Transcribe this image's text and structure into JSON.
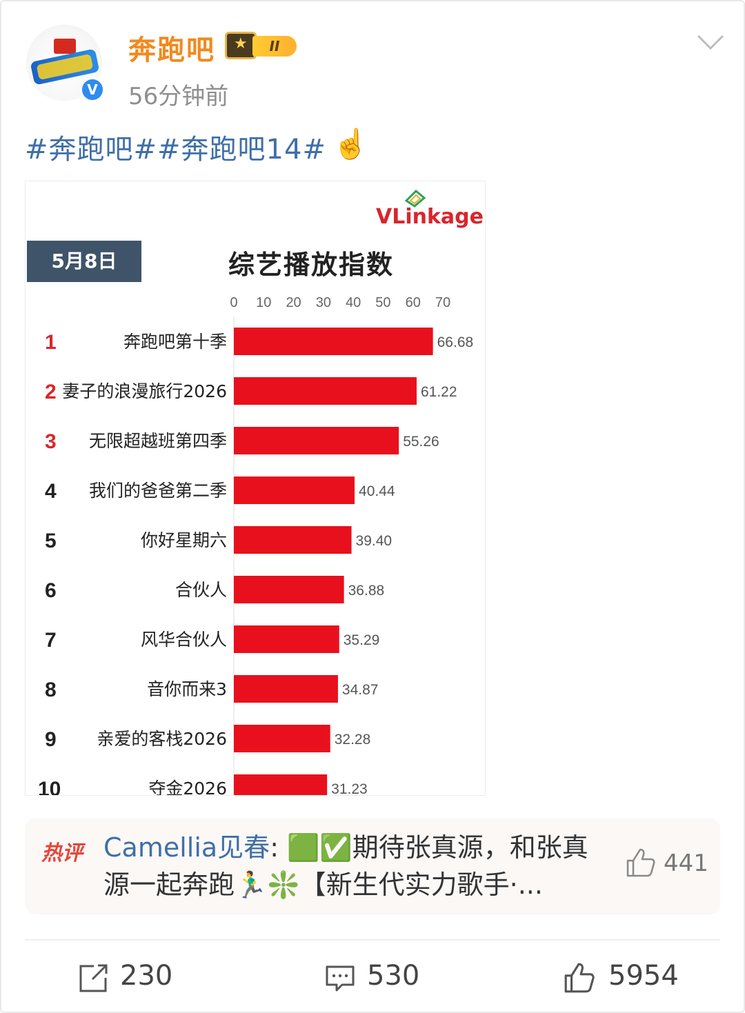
{
  "post": {
    "username": "奔跑吧",
    "vip_level": "II",
    "time": "56分钟前",
    "topics": "#奔跑吧##奔跑吧14#",
    "emoji": "☝️"
  },
  "icons": {
    "avatar": "show-logo-icon",
    "verified": "verified-icon",
    "vip": "crown-badge-icon",
    "menu": "chevron-down-icon",
    "hot_like": "thumbs-up-icon",
    "repost": "repost-icon",
    "comment": "comment-icon",
    "like": "thumbs-up-icon"
  },
  "chart_card": {
    "brand": "VLinkage",
    "date": "5月8日",
    "title": "综艺播放指数"
  },
  "chart_data": {
    "type": "bar",
    "orientation": "horizontal",
    "title": "综艺播放指数",
    "date": "5月8日",
    "xlim": [
      0,
      70
    ],
    "xticks": [
      0,
      10,
      20,
      30,
      40,
      50,
      60,
      70
    ],
    "ranks": [
      "1",
      "2",
      "3",
      "4",
      "5",
      "6",
      "7",
      "8",
      "9",
      "10"
    ],
    "categories": [
      "奔跑吧第十季",
      "妻子的浪漫旅行2026",
      "无限超越班第四季",
      "我们的爸爸第二季",
      "你好星期六",
      "合伙人",
      "风华合伙人",
      "音你而来3",
      "亲爱的客栈2026",
      "夺金2026"
    ],
    "values": [
      66.68,
      61.22,
      55.26,
      40.44,
      39.4,
      36.88,
      35.29,
      34.87,
      32.28,
      31.23
    ],
    "value_labels": [
      "66.68",
      "61.22",
      "55.26",
      "40.44",
      "39.40",
      "36.88",
      "35.29",
      "34.87",
      "32.28",
      "31.23"
    ],
    "bar_color": "#e8101c",
    "top_rank_color": "#d8262c"
  },
  "hot_comment": {
    "tag": "热评",
    "user": "Camellia见春",
    "separator": ": ",
    "text": "🟩✅期待张真源，和张真源一起奔跑🏃‍♂️❇️【新生代实力歌手·...",
    "likes": "441"
  },
  "actions": {
    "repost": "230",
    "comment": "530",
    "like": "5954"
  }
}
